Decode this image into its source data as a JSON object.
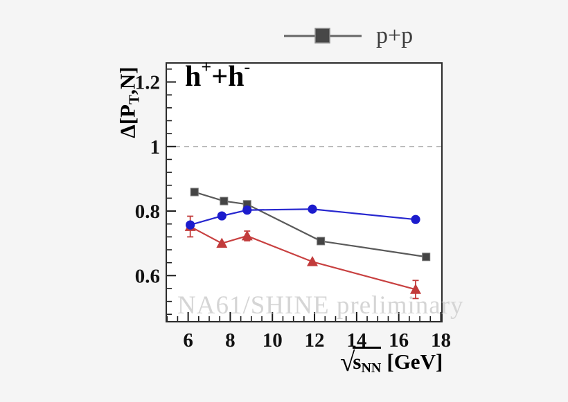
{
  "page": {
    "background": "#f5f5f5",
    "plot_background": "#ffffff",
    "frame_color": "#2b2b2b"
  },
  "legend": {
    "label": "p+p",
    "marker": "filled-square-on-line",
    "marker_color": "#474747",
    "line_color": "#666666",
    "text_color": "#3d3d3d"
  },
  "plot": {
    "title": {
      "base1": "h",
      "sup1": "+",
      "base2": "+h",
      "sup2": "-"
    },
    "watermark": "NA61/SHINE preliminary",
    "y_title": {
      "main": "Δ[P",
      "sub": "T",
      "end": ",N]"
    },
    "x_title": {
      "radical": "√",
      "s": "s",
      "sub": "NN",
      "unit": "[GeV]"
    }
  },
  "chart_data": {
    "type": "line",
    "title": "h+ + h-",
    "xlabel": "sqrt(s_NN) [GeV]",
    "ylabel": "Delta[P_T,N]",
    "xlim": [
      4.96,
      18.05
    ],
    "ylim": [
      0.457,
      1.259
    ],
    "grid": false,
    "legend": [
      "p+p"
    ],
    "legend_position": "top-outside",
    "reference_line_y": 1.0,
    "reference_line_style": "dashed-gray",
    "x_major_ticks": [
      6,
      8,
      10,
      12,
      14,
      16,
      18
    ],
    "x_tick_labels": [
      "6",
      "8",
      "10",
      "12",
      "14",
      "16",
      "18"
    ],
    "x_minor_ticks": [
      5,
      5.5,
      6.5,
      7,
      7.5,
      8.5,
      9,
      9.5,
      10.5,
      11,
      11.5,
      12.5,
      13,
      13.5,
      14.5,
      15,
      15.5,
      16.5,
      17,
      17.5
    ],
    "y_major_ticks": [
      0.6,
      0.8,
      1.0,
      1.2
    ],
    "y_tick_labels": [
      "0.6",
      "0.8",
      "1",
      "1.2"
    ],
    "y_minor_ticks": [
      0.48,
      0.52,
      0.56,
      0.64,
      0.68,
      0.72,
      0.76,
      0.84,
      0.88,
      0.92,
      0.96,
      1.04,
      1.08,
      1.12,
      1.16,
      1.24
    ],
    "series": [
      {
        "name": "p+p",
        "marker": "square",
        "color": "#454545",
        "line_color": "#5a5a5a",
        "x": [
          6.3,
          7.7,
          8.8,
          12.3,
          17.3
        ],
        "y": [
          0.859,
          0.831,
          0.821,
          0.707,
          0.658
        ],
        "yerr": [
          0,
          0,
          0,
          0,
          0
        ]
      },
      {
        "name": "red-triangles",
        "marker": "triangle",
        "color": "#c23b3b",
        "line_color": "#c84040",
        "x": [
          6.1,
          7.6,
          8.8,
          11.9,
          16.8
        ],
        "y": [
          0.752,
          0.7,
          0.723,
          0.643,
          0.557
        ],
        "yerr": [
          0.032,
          0,
          0.015,
          0,
          0.028
        ]
      },
      {
        "name": "blue-circles",
        "marker": "circle",
        "color": "#1c1ccd",
        "line_color": "#2727cf",
        "x": [
          6.1,
          7.6,
          8.8,
          11.9,
          16.8
        ],
        "y": [
          0.757,
          0.785,
          0.803,
          0.806,
          0.774
        ],
        "yerr": [
          0,
          0,
          0,
          0,
          0
        ]
      }
    ]
  }
}
